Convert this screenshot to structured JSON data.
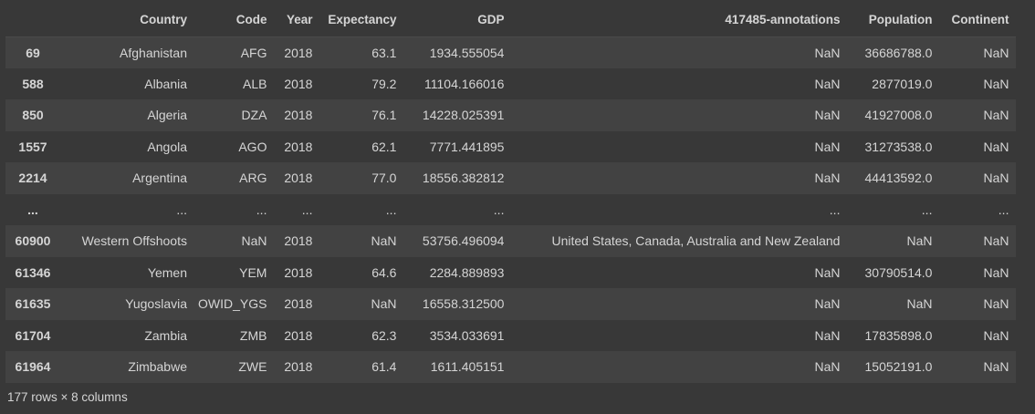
{
  "table": {
    "columns": [
      "",
      "Country",
      "Code",
      "Year",
      "Expectancy",
      "GDP",
      "417485-annotations",
      "Population",
      "Continent"
    ],
    "rows": [
      [
        "69",
        "Afghanistan",
        "AFG",
        "2018",
        "63.1",
        "1934.555054",
        "NaN",
        "36686788.0",
        "NaN"
      ],
      [
        "588",
        "Albania",
        "ALB",
        "2018",
        "79.2",
        "11104.166016",
        "NaN",
        "2877019.0",
        "NaN"
      ],
      [
        "850",
        "Algeria",
        "DZA",
        "2018",
        "76.1",
        "14228.025391",
        "NaN",
        "41927008.0",
        "NaN"
      ],
      [
        "1557",
        "Angola",
        "AGO",
        "2018",
        "62.1",
        "7771.441895",
        "NaN",
        "31273538.0",
        "NaN"
      ],
      [
        "2214",
        "Argentina",
        "ARG",
        "2018",
        "77.0",
        "18556.382812",
        "NaN",
        "44413592.0",
        "NaN"
      ],
      [
        "...",
        "...",
        "...",
        "...",
        "...",
        "...",
        "...",
        "...",
        "..."
      ],
      [
        "60900",
        "Western Offshoots",
        "NaN",
        "2018",
        "NaN",
        "53756.496094",
        "United States, Canada, Australia and New Zealand",
        "NaN",
        "NaN"
      ],
      [
        "61346",
        "Yemen",
        "YEM",
        "2018",
        "64.6",
        "2284.889893",
        "NaN",
        "30790514.0",
        "NaN"
      ],
      [
        "61635",
        "Yugoslavia",
        "OWID_YGS",
        "2018",
        "NaN",
        "16558.312500",
        "NaN",
        "NaN",
        "NaN"
      ],
      [
        "61704",
        "Zambia",
        "ZMB",
        "2018",
        "62.3",
        "3534.033691",
        "NaN",
        "17835898.0",
        "NaN"
      ],
      [
        "61964",
        "Zimbabwe",
        "ZWE",
        "2018",
        "61.4",
        "1611.405151",
        "NaN",
        "15052191.0",
        "NaN"
      ]
    ]
  },
  "footer": {
    "shape": "177 rows × 8 columns"
  }
}
